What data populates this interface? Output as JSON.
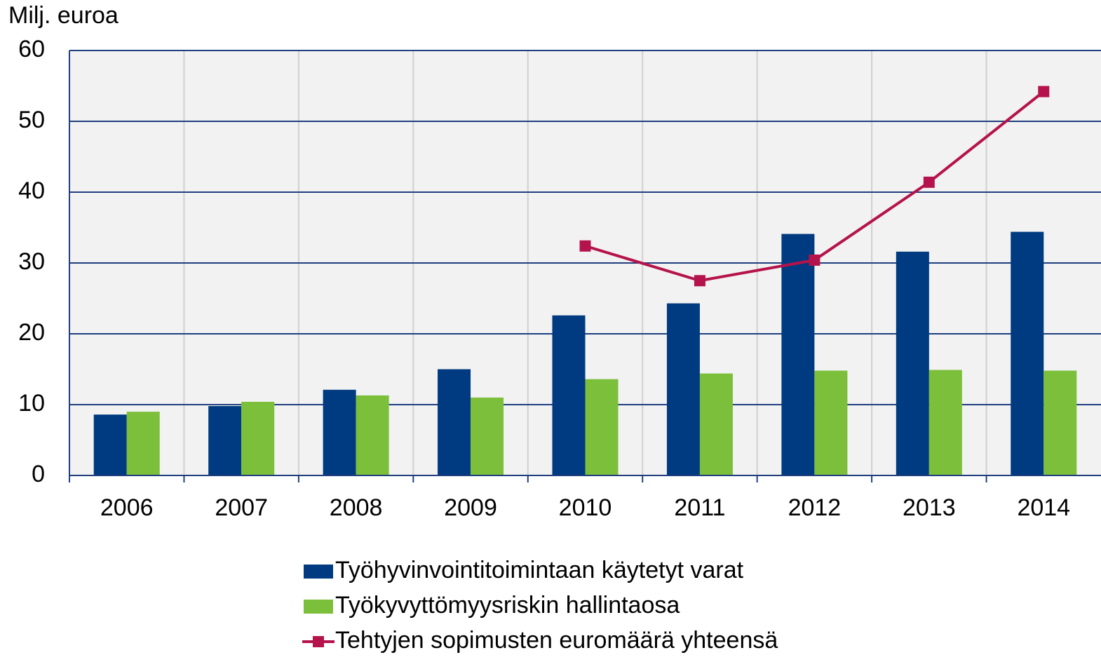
{
  "chart_data": {
    "type": "bar_line",
    "y_label": "Milj. euroa",
    "categories": [
      "2006",
      "2007",
      "2008",
      "2009",
      "2010",
      "2011",
      "2012",
      "2013",
      "2014"
    ],
    "series": [
      {
        "name": "Työhyvinvointitoimintaan käytetyt varat",
        "type": "bar",
        "color": "#003a80",
        "values": [
          8.6,
          9.8,
          12.1,
          15.0,
          22.6,
          24.3,
          34.1,
          31.6,
          34.4
        ]
      },
      {
        "name": "Työkyvyttömyysriskin hallintaosa",
        "type": "bar",
        "color": "#7cbf3a",
        "values": [
          9.0,
          10.4,
          11.3,
          11.0,
          13.6,
          14.4,
          14.8,
          14.9,
          14.8
        ]
      },
      {
        "name": "Tehtyjen sopimusten euromäärä yhteensä",
        "type": "line",
        "color": "#b5134b",
        "values": [
          null,
          null,
          null,
          null,
          32.4,
          27.5,
          30.4,
          41.4,
          54.2
        ]
      }
    ],
    "ylim": [
      0,
      60
    ],
    "yticks": [
      0,
      10,
      20,
      30,
      40,
      50,
      60
    ],
    "grid": true,
    "legend_position": "bottom"
  }
}
